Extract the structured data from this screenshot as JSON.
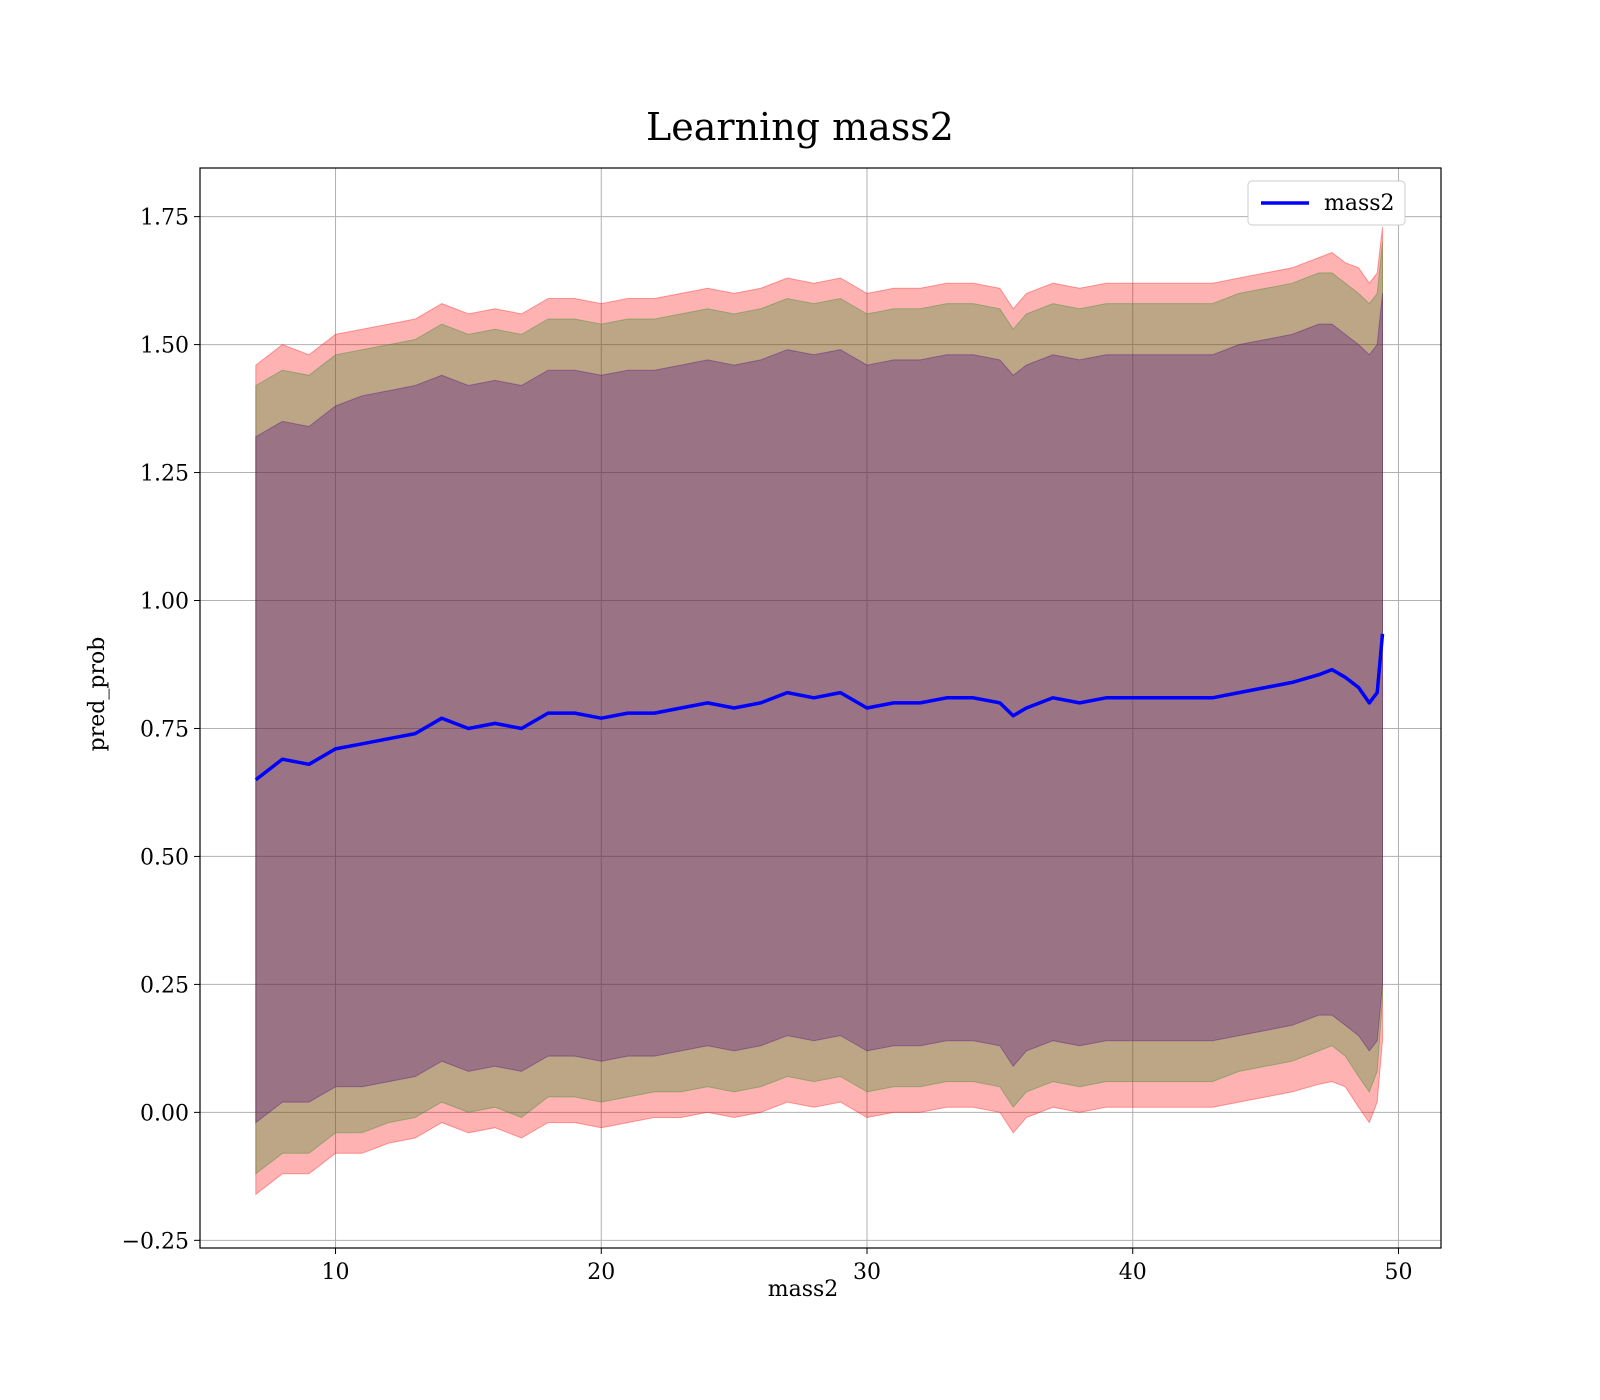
{
  "chart_data": {
    "type": "area",
    "title": "Learning mass2",
    "xlabel": "mass2",
    "ylabel": "pred_prob",
    "xlim": [
      4.9,
      51.6
    ],
    "ylim": [
      -0.265,
      1.845
    ],
    "xticks": [
      10,
      20,
      30,
      40,
      50
    ],
    "xtick_labels": [
      "10",
      "20",
      "30",
      "40",
      "50"
    ],
    "yticks": [
      -0.25,
      0,
      0.25,
      0.5,
      0.75,
      1.0,
      1.25,
      1.5,
      1.75
    ],
    "ytick_labels": [
      "−0.25",
      "0.00",
      "0.25",
      "0.50",
      "0.75",
      "1.00",
      "1.25",
      "1.50",
      "1.75"
    ],
    "grid": true,
    "legend": {
      "position": "top-right",
      "entries": [
        "mass2"
      ]
    },
    "x": [
      7.0,
      8.0,
      9.0,
      10.0,
      11.0,
      12.0,
      13.0,
      14.0,
      15.0,
      16.0,
      17.0,
      18.0,
      19.0,
      20.0,
      21.0,
      22.0,
      23.0,
      24.0,
      25.0,
      26.0,
      27.0,
      28.0,
      29.0,
      30.0,
      31.0,
      32.0,
      33.0,
      34.0,
      35.0,
      35.5,
      36.0,
      37.0,
      38.0,
      39.0,
      40.0,
      41.0,
      42.0,
      43.0,
      44.0,
      45.0,
      46.0,
      47.0,
      47.5,
      48.0,
      48.5,
      48.9,
      49.2,
      49.4
    ],
    "series": [
      {
        "name": "mass2",
        "color": "#0000ff",
        "values": [
          0.65,
          0.69,
          0.68,
          0.71,
          0.72,
          0.73,
          0.74,
          0.77,
          0.75,
          0.76,
          0.75,
          0.78,
          0.78,
          0.77,
          0.78,
          0.78,
          0.79,
          0.8,
          0.79,
          0.8,
          0.82,
          0.81,
          0.82,
          0.79,
          0.8,
          0.8,
          0.81,
          0.81,
          0.8,
          0.775,
          0.79,
          0.81,
          0.8,
          0.81,
          0.81,
          0.81,
          0.81,
          0.81,
          0.82,
          0.83,
          0.84,
          0.855,
          0.865,
          0.85,
          0.83,
          0.8,
          0.82,
          0.935
        ]
      }
    ],
    "bands": [
      {
        "role": "outer band (±2 std)",
        "color": "#ff0000",
        "opacity": 0.3,
        "lower": [
          -0.16,
          -0.12,
          -0.12,
          -0.08,
          -0.08,
          -0.06,
          -0.05,
          -0.02,
          -0.04,
          -0.03,
          -0.05,
          -0.02,
          -0.02,
          -0.03,
          -0.02,
          -0.01,
          -0.01,
          0.0,
          -0.01,
          0.0,
          0.02,
          0.01,
          0.02,
          -0.01,
          0.0,
          0.0,
          0.01,
          0.01,
          0.0,
          -0.04,
          -0.01,
          0.01,
          0.0,
          0.01,
          0.01,
          0.01,
          0.01,
          0.01,
          0.02,
          0.03,
          0.04,
          0.055,
          0.06,
          0.05,
          0.01,
          -0.02,
          0.02,
          0.14
        ],
        "upper": [
          1.46,
          1.5,
          1.48,
          1.52,
          1.53,
          1.54,
          1.55,
          1.58,
          1.56,
          1.57,
          1.56,
          1.59,
          1.59,
          1.58,
          1.59,
          1.59,
          1.6,
          1.61,
          1.6,
          1.61,
          1.63,
          1.62,
          1.63,
          1.6,
          1.61,
          1.61,
          1.62,
          1.62,
          1.61,
          1.57,
          1.6,
          1.62,
          1.61,
          1.62,
          1.62,
          1.62,
          1.62,
          1.62,
          1.63,
          1.64,
          1.65,
          1.67,
          1.68,
          1.66,
          1.65,
          1.62,
          1.64,
          1.73
        ]
      },
      {
        "role": "middle band (bias adjusted)",
        "color": "#228b22",
        "opacity": 0.3,
        "lower": [
          -0.12,
          -0.08,
          -0.08,
          -0.04,
          -0.04,
          -0.02,
          -0.01,
          0.02,
          0.0,
          0.01,
          -0.01,
          0.03,
          0.03,
          0.02,
          0.03,
          0.04,
          0.04,
          0.05,
          0.04,
          0.05,
          0.07,
          0.06,
          0.07,
          0.04,
          0.05,
          0.05,
          0.06,
          0.06,
          0.05,
          0.01,
          0.04,
          0.06,
          0.05,
          0.06,
          0.06,
          0.06,
          0.06,
          0.06,
          0.08,
          0.09,
          0.1,
          0.12,
          0.13,
          0.11,
          0.07,
          0.04,
          0.08,
          0.22
        ],
        "upper": [
          1.42,
          1.45,
          1.44,
          1.48,
          1.49,
          1.5,
          1.51,
          1.54,
          1.52,
          1.53,
          1.52,
          1.55,
          1.55,
          1.54,
          1.55,
          1.55,
          1.56,
          1.57,
          1.56,
          1.57,
          1.59,
          1.58,
          1.59,
          1.56,
          1.57,
          1.57,
          1.58,
          1.58,
          1.57,
          1.53,
          1.56,
          1.58,
          1.57,
          1.58,
          1.58,
          1.58,
          1.58,
          1.58,
          1.6,
          1.61,
          1.62,
          1.64,
          1.64,
          1.62,
          1.6,
          1.58,
          1.6,
          1.7
        ]
      },
      {
        "role": "inner band (±1 std)",
        "color": "#4b0082",
        "opacity": 0.3,
        "lower": [
          -0.02,
          0.02,
          0.02,
          0.05,
          0.05,
          0.06,
          0.07,
          0.1,
          0.08,
          0.09,
          0.08,
          0.11,
          0.11,
          0.1,
          0.11,
          0.11,
          0.12,
          0.13,
          0.12,
          0.13,
          0.15,
          0.14,
          0.15,
          0.12,
          0.13,
          0.13,
          0.14,
          0.14,
          0.13,
          0.09,
          0.12,
          0.14,
          0.13,
          0.14,
          0.14,
          0.14,
          0.14,
          0.14,
          0.15,
          0.16,
          0.17,
          0.19,
          0.19,
          0.17,
          0.15,
          0.12,
          0.14,
          0.25
        ],
        "upper": [
          1.32,
          1.35,
          1.34,
          1.38,
          1.4,
          1.41,
          1.42,
          1.44,
          1.42,
          1.43,
          1.42,
          1.45,
          1.45,
          1.44,
          1.45,
          1.45,
          1.46,
          1.47,
          1.46,
          1.47,
          1.49,
          1.48,
          1.49,
          1.46,
          1.47,
          1.47,
          1.48,
          1.48,
          1.47,
          1.44,
          1.46,
          1.48,
          1.47,
          1.48,
          1.48,
          1.48,
          1.48,
          1.48,
          1.5,
          1.51,
          1.52,
          1.54,
          1.54,
          1.52,
          1.5,
          1.48,
          1.5,
          1.6
        ]
      }
    ]
  }
}
